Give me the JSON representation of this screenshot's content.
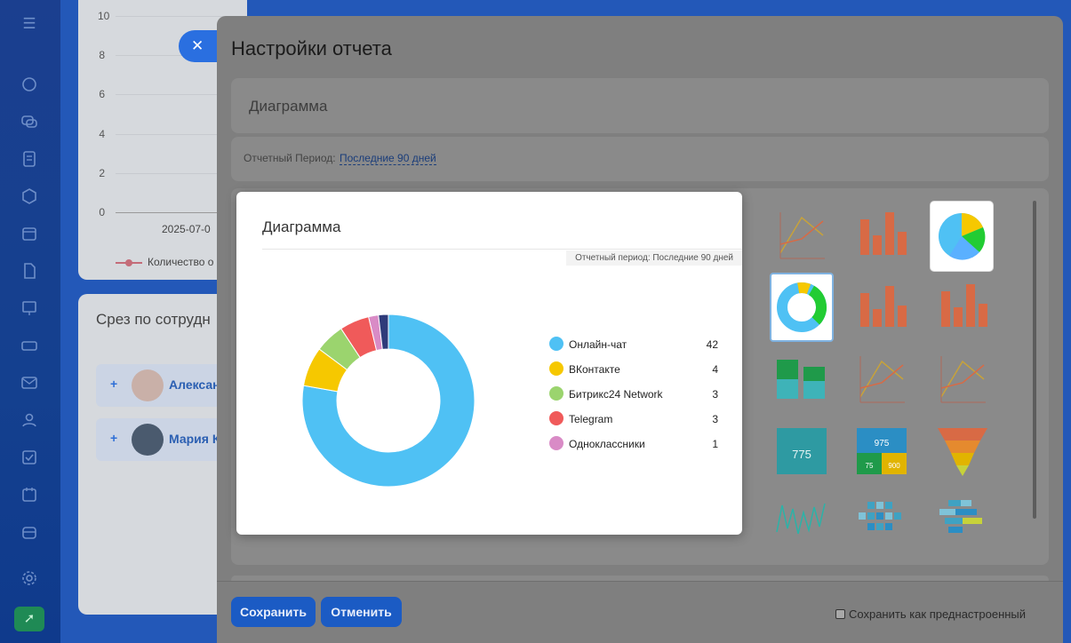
{
  "background": {
    "chart_yticks": [
      "10",
      "8",
      "6",
      "4",
      "2",
      "0"
    ],
    "chart_date": "2025-07-0",
    "chart_legend": "Количество о",
    "section_title": "Срез по сотрудн",
    "employees": [
      {
        "name": "Алексан"
      },
      {
        "name": "Мария К"
      }
    ]
  },
  "panel": {
    "title": "Настройки отчета",
    "name_field": "Диаграмма",
    "period_label": "Отчетный Период:",
    "period_value": "Последние 90 дней",
    "save_label": "Сохранить",
    "cancel_label": "Отменить",
    "preset_label": "Сохранить как преднастроенный"
  },
  "popup": {
    "title": "Диаграмма",
    "period": "Отчетный период: Последние 90 дней",
    "thumb_numbers": {
      "a": "775",
      "b": "975",
      "c": "75",
      "d": "900"
    }
  },
  "chart_data": {
    "type": "pie",
    "variant": "donut",
    "categories": [
      "Онлайн-чат",
      "ВКонтакте",
      "Битрикс24 Network",
      "Telegram",
      "Одноклассники"
    ],
    "values": [
      42,
      4,
      3,
      3,
      1
    ],
    "colors": [
      "#4fc1f4",
      "#f6c800",
      "#9bd46e",
      "#f05a5a",
      "#d98bc6"
    ],
    "extra_segment": {
      "value": 1,
      "color": "#2f3b7a"
    },
    "legend_position": "right"
  }
}
